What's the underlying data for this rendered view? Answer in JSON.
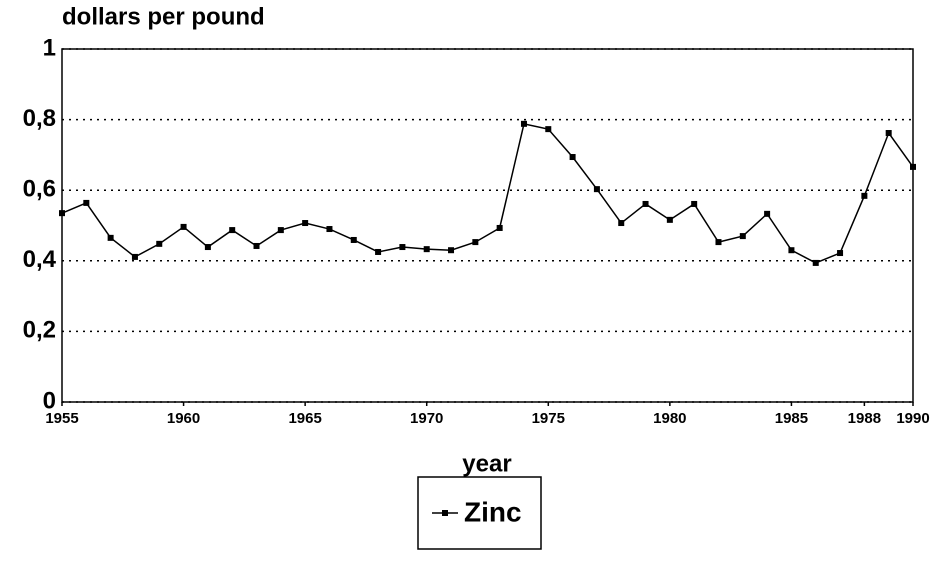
{
  "chart_data": {
    "type": "line",
    "y_label": "dollars per pound",
    "x_label": "year",
    "x": [
      1955,
      1956,
      1957,
      1958,
      1959,
      1960,
      1961,
      1962,
      1963,
      1964,
      1965,
      1966,
      1967,
      1968,
      1969,
      1970,
      1971,
      1972,
      1973,
      1974,
      1975,
      1976,
      1977,
      1978,
      1979,
      1980,
      1981,
      1982,
      1983,
      1984,
      1985,
      1986,
      1987,
      1988,
      1989,
      1990
    ],
    "series": [
      {
        "name": "Zinc",
        "color": "#000000",
        "values": [
          0.535,
          0.564,
          0.465,
          0.411,
          0.448,
          0.496,
          0.439,
          0.487,
          0.442,
          0.487,
          0.507,
          0.49,
          0.459,
          0.425,
          0.439,
          0.433,
          0.43,
          0.453,
          0.493,
          0.788,
          0.773,
          0.694,
          0.603,
          0.507,
          0.561,
          0.516,
          0.561,
          0.453,
          0.47,
          0.533,
          0.43,
          0.394,
          0.422,
          0.584,
          0.762,
          0.666
        ]
      }
    ],
    "xlim": [
      1955,
      1990
    ],
    "xticks": [
      1955,
      1960,
      1965,
      1970,
      1975,
      1980,
      1985,
      1988,
      1990
    ],
    "ylim": [
      0,
      1
    ],
    "yticks": [
      0,
      {
        "value": 0.2,
        "label": "0,2"
      },
      {
        "value": 0.4,
        "label": "0,4"
      },
      {
        "value": 0.6,
        "label": "0,6"
      },
      {
        "value": 0.8,
        "label": "0,8"
      },
      1
    ],
    "grid": true
  }
}
